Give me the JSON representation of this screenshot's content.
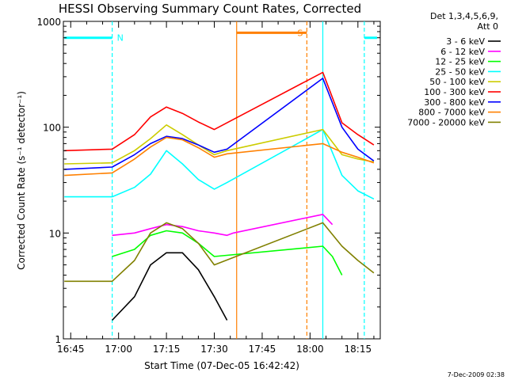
{
  "chart_data": {
    "type": "line",
    "title": "HESSI Observing Summary Count Rates, Corrected",
    "xlabel": "Start Time (07-Dec-05 16:42:42)",
    "ylabel": "Corrected Count Rate (s⁻¹ detector⁻¹)",
    "yscale": "log",
    "ylim": [
      1,
      1000
    ],
    "xlim": [
      "16:42:42",
      "18:22:00"
    ],
    "xticks": [
      "16:45",
      "17:00",
      "17:15",
      "17:30",
      "17:45",
      "18:00",
      "18:15"
    ],
    "yticks": [
      "1",
      "10",
      "100",
      "1000"
    ],
    "legend_header": [
      "Det 1,3,4,5,6,9,",
      "Att 0"
    ],
    "legend_placement": "right",
    "timestamp": "7-Dec-2009 02:38",
    "flags": [
      {
        "label": "N",
        "color": "#00ffff",
        "segments": [
          [
            "16:43",
            "16:58"
          ],
          [
            "18:17",
            "18:21"
          ]
        ],
        "level": 700
      },
      {
        "label": "S",
        "color": "#ff8000",
        "segments": [
          [
            "17:37",
            "17:59"
          ]
        ],
        "level": 780
      }
    ],
    "markers": [
      {
        "time": "16:58",
        "color": "#00ffff",
        "style": "dashed"
      },
      {
        "time": "17:37",
        "color": "#ff8000",
        "style": "solid"
      },
      {
        "time": "17:59",
        "color": "#ff8000",
        "style": "dashed"
      },
      {
        "time": "18:04",
        "color": "#00ffff",
        "style": "solid"
      },
      {
        "time": "18:17",
        "color": "#00ffff",
        "style": "dashed"
      }
    ],
    "series": [
      {
        "name": "3 - 6 keV",
        "color": "#000000",
        "x": [
          "16:58",
          "17:05",
          "17:10",
          "17:15",
          "17:20",
          "17:25",
          "17:30",
          "17:34"
        ],
        "y": [
          1.5,
          2.5,
          5,
          6.5,
          6.5,
          4.5,
          2.5,
          1.5
        ]
      },
      {
        "name": "6 - 12 keV",
        "color": "#ff00ff",
        "x": [
          "16:58",
          "17:05",
          "17:10",
          "17:15",
          "17:20",
          "17:25",
          "17:30",
          "17:34",
          "17:36",
          "18:04",
          "18:07"
        ],
        "y": [
          9.5,
          10,
          11,
          12,
          11.5,
          10.5,
          10,
          9.5,
          10,
          15,
          12
        ]
      },
      {
        "name": "12 - 25 keV",
        "color": "#00ff00",
        "x": [
          "16:58",
          "17:05",
          "17:10",
          "17:15",
          "17:20",
          "17:25",
          "17:30",
          "18:04",
          "18:07",
          "18:10"
        ],
        "y": [
          6,
          7,
          9.5,
          10.5,
          10,
          8,
          6,
          7.5,
          6,
          4
        ]
      },
      {
        "name": "25 - 50 keV",
        "color": "#00ffff",
        "x": [
          "16:43",
          "16:58",
          "17:05",
          "17:10",
          "17:15",
          "17:20",
          "17:25",
          "17:30",
          "17:34",
          "18:04",
          "18:10",
          "18:15",
          "18:20"
        ],
        "y": [
          22,
          22,
          27,
          36,
          60,
          45,
          32,
          26,
          30,
          95,
          35,
          25,
          21
        ]
      },
      {
        "name": "50 - 100 keV",
        "color": "#cccc00",
        "x": [
          "16:43",
          "16:58",
          "17:05",
          "17:10",
          "17:15",
          "17:20",
          "17:25",
          "17:30",
          "17:34",
          "18:04",
          "18:10",
          "18:15",
          "18:20"
        ],
        "y": [
          45,
          46,
          60,
          78,
          105,
          85,
          68,
          55,
          60,
          95,
          55,
          50,
          47
        ]
      },
      {
        "name": "100 - 300 keV",
        "color": "#ff0000",
        "x": [
          "16:43",
          "16:58",
          "17:05",
          "17:10",
          "17:15",
          "17:20",
          "17:25",
          "17:30",
          "17:34",
          "18:04",
          "18:10",
          "18:15",
          "18:20"
        ],
        "y": [
          60,
          62,
          85,
          125,
          155,
          135,
          112,
          95,
          110,
          330,
          110,
          85,
          68
        ]
      },
      {
        "name": "300 - 800 keV",
        "color": "#0000ff",
        "x": [
          "16:43",
          "16:58",
          "17:05",
          "17:10",
          "17:15",
          "17:20",
          "17:25",
          "17:30",
          "17:34",
          "18:04",
          "18:10",
          "18:15",
          "18:20"
        ],
        "y": [
          40,
          42,
          55,
          70,
          82,
          78,
          68,
          58,
          62,
          290,
          100,
          62,
          48
        ]
      },
      {
        "name": "800 - 7000 keV",
        "color": "#ff8000",
        "x": [
          "16:43",
          "16:58",
          "17:05",
          "17:10",
          "17:15",
          "17:20",
          "17:25",
          "17:30",
          "17:34",
          "18:04",
          "18:10",
          "18:15",
          "18:20"
        ],
        "y": [
          35,
          37,
          50,
          65,
          80,
          76,
          64,
          52,
          56,
          70,
          58,
          52,
          46
        ]
      },
      {
        "name": "7000 - 20000 keV",
        "color": "#808000",
        "x": [
          "16:43",
          "16:58",
          "17:05",
          "17:10",
          "17:15",
          "17:20",
          "17:25",
          "17:30",
          "18:04",
          "18:10",
          "18:15",
          "18:20"
        ],
        "y": [
          3.5,
          3.5,
          5.5,
          10,
          12.5,
          11,
          8,
          5,
          12.5,
          7.5,
          5.5,
          4.2
        ]
      }
    ]
  }
}
